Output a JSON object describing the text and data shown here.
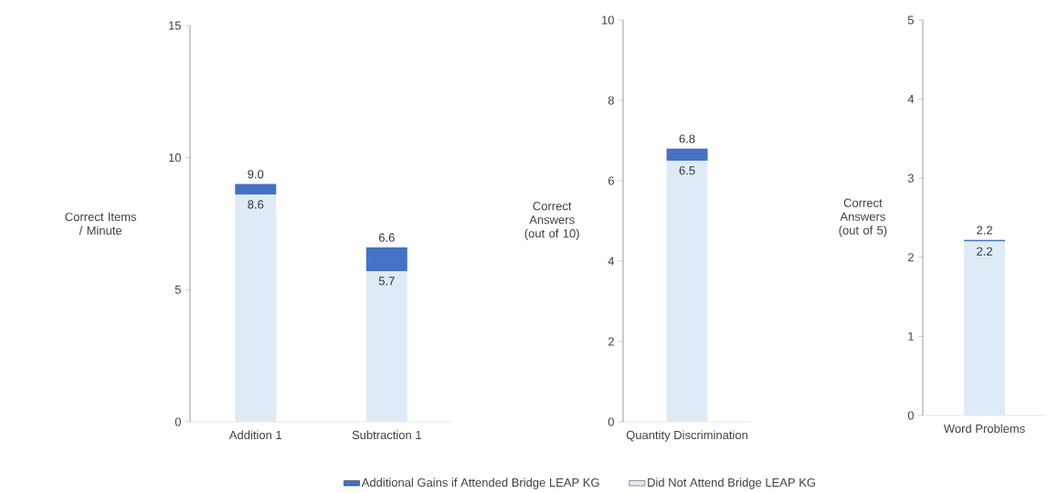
{
  "chart_data": [
    {
      "type": "bar",
      "stacked": true,
      "categories": [
        "Addition 1",
        "Subtraction 1"
      ],
      "ylabel": "Correct Items / Minute",
      "ylim": [
        0,
        15
      ],
      "yticks": [
        0,
        5,
        10,
        15
      ],
      "legend": "bottom",
      "series": [
        {
          "name": "Did Not Attend Bridge LEAP KG",
          "color": "#deebf7",
          "values": [
            8.6,
            5.7
          ],
          "value_labels": [
            "8.6",
            "5.7"
          ]
        },
        {
          "name": "Additional Gains if Attended Bridge LEAP KG",
          "color": "#4472c4",
          "values": [
            0.4,
            0.9
          ]
        }
      ],
      "totals": [
        "9.0",
        "6.6"
      ]
    },
    {
      "type": "bar",
      "stacked": true,
      "categories": [
        "Quantity Discrimination"
      ],
      "ylabel": "Correct Answers (out of 10)",
      "ylim": [
        0,
        10
      ],
      "yticks": [
        0,
        2,
        4,
        6,
        8,
        10
      ],
      "series": [
        {
          "color": "#deebf7",
          "values": [
            6.5
          ],
          "value_labels": [
            "6.5"
          ]
        },
        {
          "color": "#4472c4",
          "values": [
            0.3
          ]
        }
      ],
      "totals": [
        "6.8"
      ]
    },
    {
      "type": "bar",
      "stacked": true,
      "categories": [
        "Word Problems"
      ],
      "ylabel": "Correct Answers (out of 5)",
      "ylim": [
        0,
        5
      ],
      "yticks": [
        0,
        1,
        2,
        3,
        4,
        5
      ],
      "series": [
        {
          "color": "#deebf7",
          "values": [
            2.2
          ],
          "value_labels": [
            "2.2"
          ]
        },
        {
          "color": "#4472c4",
          "values": [
            0.02
          ]
        }
      ],
      "totals": [
        "2.2"
      ]
    }
  ]
}
